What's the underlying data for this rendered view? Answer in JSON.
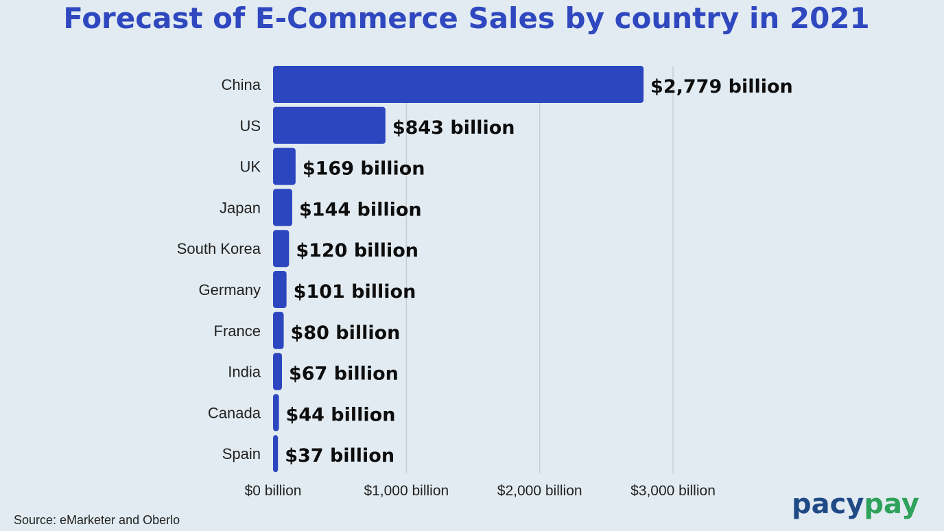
{
  "chart_data": {
    "type": "bar",
    "orientation": "horizontal",
    "title": "Forecast of E-Commerce Sales by country in 2021",
    "categories": [
      "China",
      "US",
      "UK",
      "Japan",
      "South Korea",
      "Germany",
      "France",
      "India",
      "Canada",
      "Spain"
    ],
    "values": [
      2779,
      843,
      169,
      144,
      120,
      101,
      80,
      67,
      44,
      37
    ],
    "value_labels": [
      "$2,779 billion",
      "$843 billion",
      "$169 billion",
      "$144 billion",
      "$120 billion",
      "$101 billion",
      "$80 billion",
      "$67 billion",
      "$44 billion",
      "$37 billion"
    ],
    "xlabel": "",
    "ylabel": "",
    "xlim": [
      0,
      3000
    ],
    "x_ticks": [
      0,
      1000,
      2000,
      3000
    ],
    "x_tick_labels": [
      "$0 billion",
      "$1,000 billion",
      "$2,000 billion",
      "$3,000 billion"
    ],
    "grid": true,
    "bar_color": "#2c46c0",
    "grid_color": "#c2c9cd"
  },
  "footer": {
    "source": "Source: eMarketer and Oberlo"
  },
  "logo": {
    "part1": "pacy",
    "part2": "pay"
  }
}
